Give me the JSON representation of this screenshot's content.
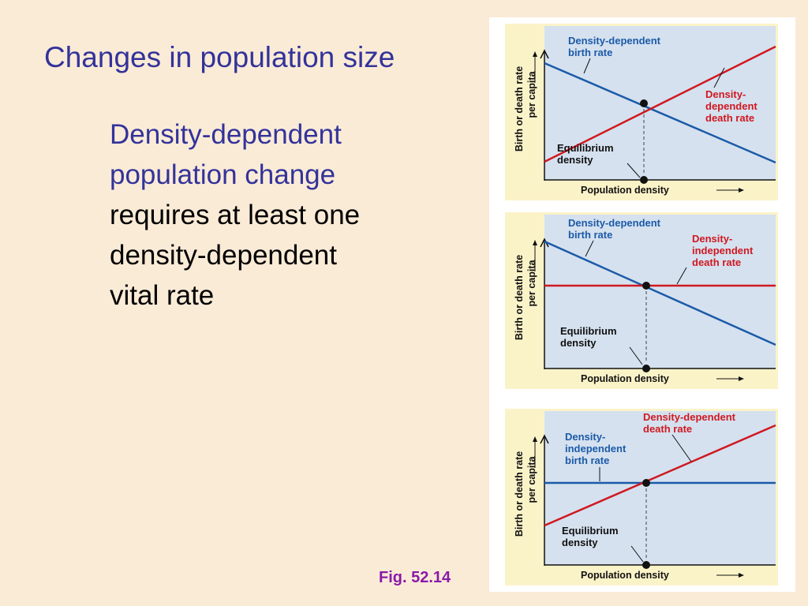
{
  "slide": {
    "title": "Changes in population size",
    "body_lines": [
      "Density-dependent",
      "population change",
      "requires at least one",
      "density-dependent",
      "vital rate"
    ],
    "fig_label": "Fig. 52.14"
  },
  "colors": {
    "background": "#faebd7",
    "title": "#33339a",
    "fig_label": "#8a1aa8",
    "birth_rate_line": "#1b5aa8",
    "death_rate_line": "#d01820",
    "panel_bg": "#d5e1ef",
    "panel_border": "#fbf3c8"
  },
  "figure": {
    "y_axis_label_1": "Birth or death rate",
    "y_axis_label_2": "per capita",
    "x_axis_label": "Population density",
    "panels": [
      {
        "birth_label": [
          "Density-dependent",
          "birth rate"
        ],
        "death_label": [
          "Density-",
          "dependent",
          "death rate"
        ],
        "equilibrium_label": [
          "Equilibrium",
          "density"
        ],
        "birth_rate_slope": "decreasing",
        "death_rate_slope": "increasing"
      },
      {
        "birth_label": [
          "Density-dependent",
          "birth rate"
        ],
        "death_label": [
          "Density-",
          "independent",
          "death rate"
        ],
        "equilibrium_label": [
          "Equilibrium",
          "density"
        ],
        "birth_rate_slope": "decreasing",
        "death_rate_slope": "constant"
      },
      {
        "birth_label": [
          "Density-",
          "independent",
          "birth rate"
        ],
        "death_label": [
          "Density-dependent",
          "death rate"
        ],
        "equilibrium_label": [
          "Equilibrium",
          "density"
        ],
        "birth_rate_slope": "constant",
        "death_rate_slope": "increasing"
      }
    ]
  }
}
